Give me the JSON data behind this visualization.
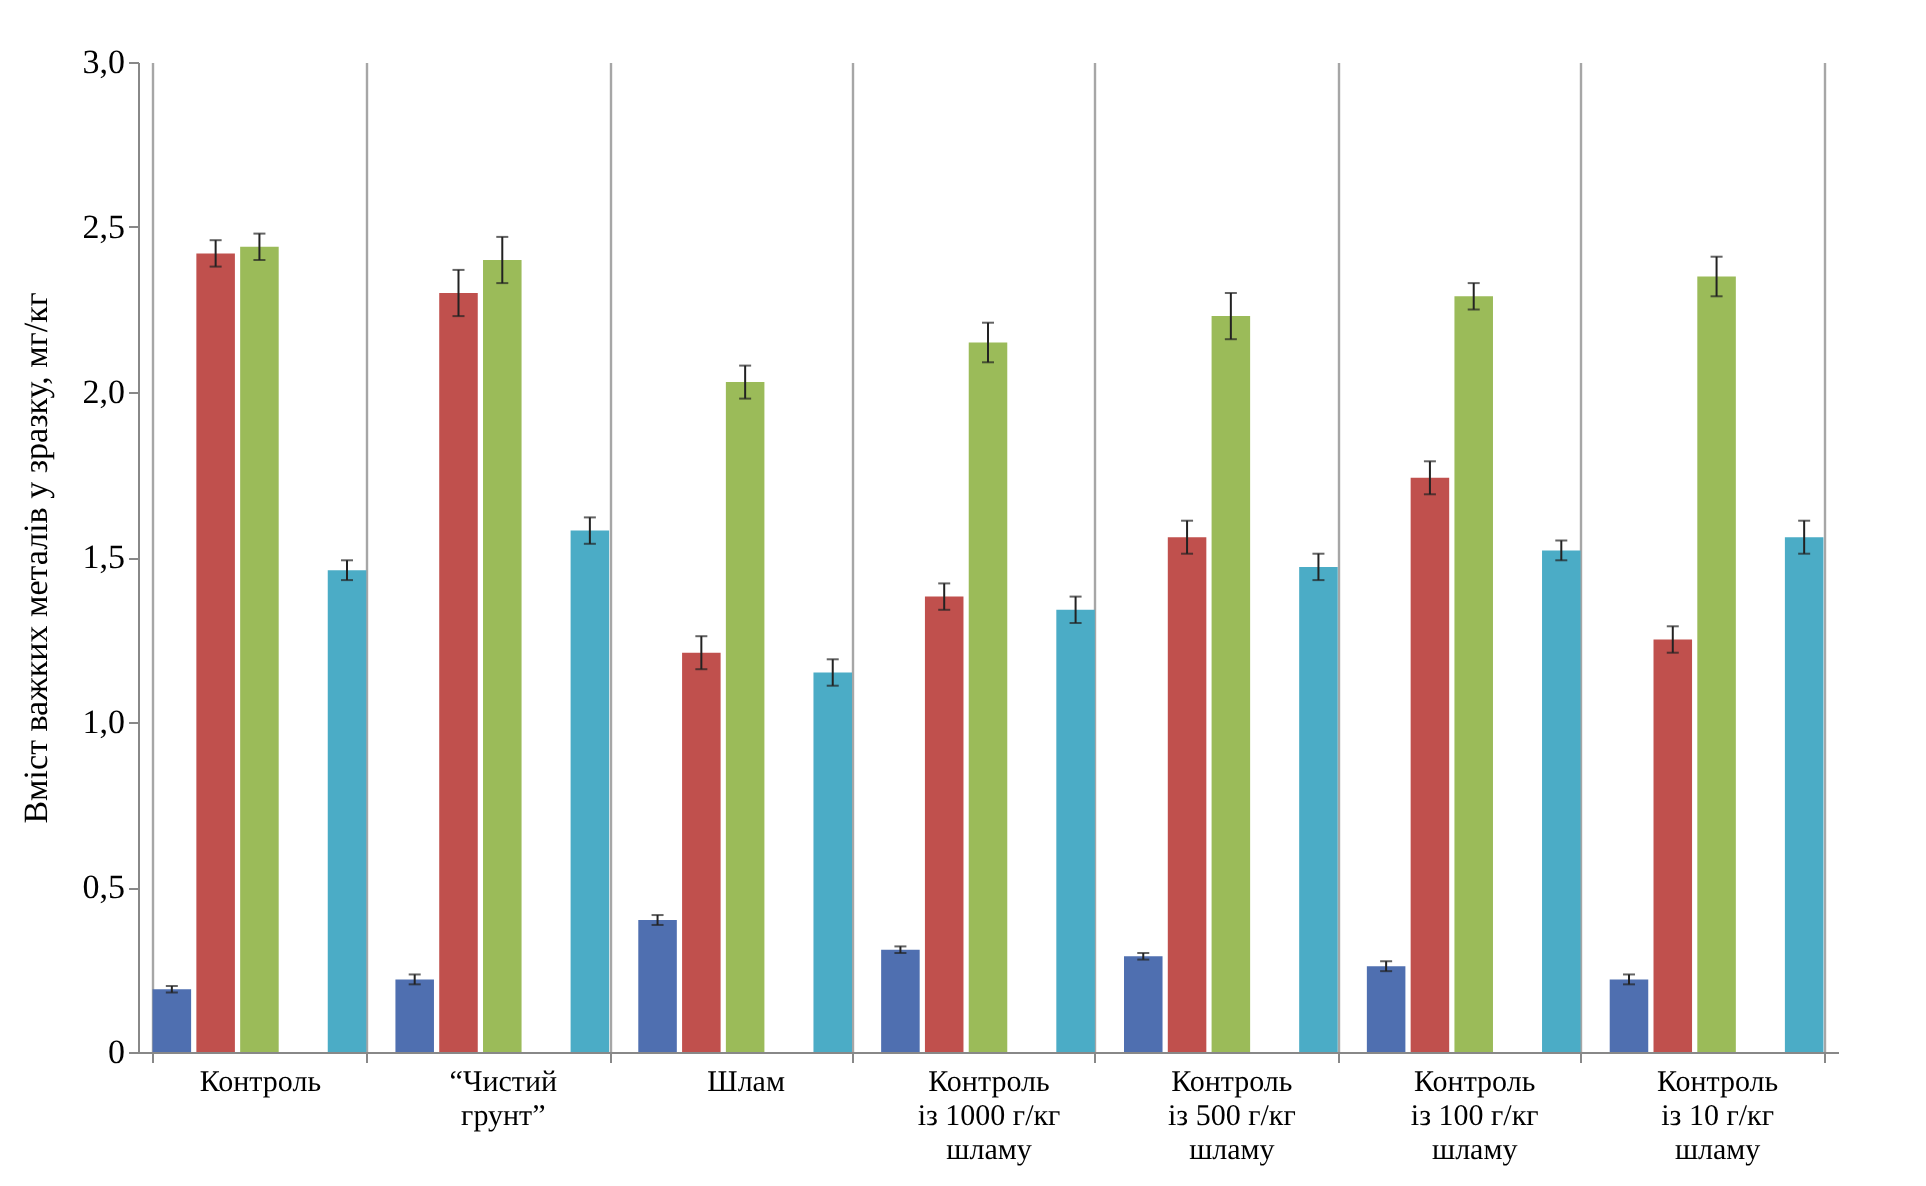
{
  "chart_data": {
    "type": "bar",
    "ylabel": "Вміст важких металів у зразку, мг/кг",
    "categories": [
      "Контроль",
      "“Чистий\nгрунт”",
      "Шлам",
      "Контроль\nіз 1000 г/кг\nшламу",
      "Контроль\nіз 500 г/кг\nшламу",
      "Контроль\nіз 100 г/кг\nшламу",
      "Контроль\nіз 10 г/кг\nшламу"
    ],
    "series": [
      {
        "color": "#4f6fb0",
        "values": [
          0.19,
          0.22,
          0.4,
          0.31,
          0.29,
          0.26,
          0.22
        ],
        "errors": [
          0.01,
          0.015,
          0.015,
          0.01,
          0.01,
          0.015,
          0.015
        ]
      },
      {
        "color": "#c0504d",
        "values": [
          2.42,
          2.3,
          1.21,
          1.38,
          1.56,
          1.74,
          1.25
        ],
        "errors": [
          0.04,
          0.07,
          0.05,
          0.04,
          0.05,
          0.05,
          0.04
        ]
      },
      {
        "color": "#9bbb59",
        "values": [
          2.44,
          2.4,
          2.03,
          2.15,
          2.23,
          2.29,
          2.35
        ],
        "errors": [
          0.04,
          0.07,
          0.05,
          0.06,
          0.07,
          0.04,
          0.06
        ]
      },
      {
        "color": "#8064a2",
        "values": [
          null,
          null,
          null,
          null,
          null,
          null,
          null
        ]
      },
      {
        "color": "#4bacc6",
        "values": [
          1.46,
          1.58,
          1.15,
          1.34,
          1.47,
          1.52,
          1.56
        ],
        "errors": [
          0.03,
          0.04,
          0.04,
          0.04,
          0.04,
          0.03,
          0.05
        ]
      }
    ],
    "ylim": [
      0,
      3
    ],
    "yticks": [
      0,
      {
        "value": 0.5,
        "label": "0,5"
      },
      {
        "value": 1,
        "label": "1,0"
      },
      {
        "value": 1.5,
        "label": "1,5"
      },
      {
        "value": 2,
        "label": "2,0"
      },
      {
        "value": 2.5,
        "label": "2,5"
      },
      {
        "value": 3,
        "label": "3,0"
      }
    ],
    "grid": "x"
  }
}
